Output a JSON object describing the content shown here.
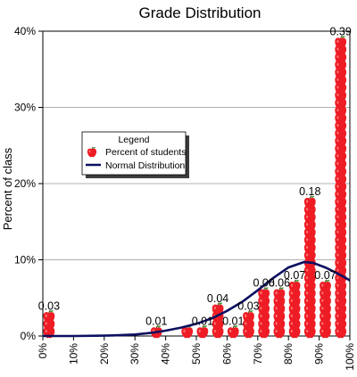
{
  "chart_data": {
    "type": "bar",
    "title": "Grade Distribution",
    "ylabel": "Percent of class",
    "xlabel": "",
    "xlim": [
      0,
      100
    ],
    "ylim": [
      0,
      0.4
    ],
    "x_ticks": [
      "0%",
      "10%",
      "20%",
      "30%",
      "40%",
      "50%",
      "60%",
      "70%",
      "80%",
      "90%",
      "100%"
    ],
    "x_tick_values": [
      0,
      10,
      20,
      30,
      40,
      50,
      60,
      70,
      80,
      90,
      100
    ],
    "y_ticks": [
      "0%",
      "10%",
      "20%",
      "30%",
      "40%"
    ],
    "y_tick_values": [
      0,
      0.1,
      0.2,
      0.3,
      0.4
    ],
    "legend": {
      "title": "Legend",
      "placement": "left-middle",
      "entries": [
        {
          "label": "Percent of students",
          "marker": "apple-icon"
        },
        {
          "label": "Normal Distribution",
          "marker": "line"
        }
      ]
    },
    "series": [
      {
        "name": "Percent of students",
        "marker": "apple-icon",
        "color": "#e8161b",
        "x": [
          2,
          37,
          47,
          52,
          57,
          62,
          67,
          72,
          77,
          82,
          87,
          92,
          97
        ],
        "values": [
          0.03,
          0.01,
          0.01,
          0.01,
          0.04,
          0.01,
          0.03,
          0.06,
          0.06,
          0.07,
          0.18,
          0.07,
          0.39
        ],
        "labels": [
          "0.03",
          "0.01",
          "0.01",
          "0.04",
          "0.01",
          "0.03",
          "0.06",
          "0.06",
          "0.07",
          "0.18",
          "0.07",
          "0.39"
        ],
        "label_points": [
          0,
          1,
          3,
          4,
          5,
          6,
          7,
          8,
          9,
          10,
          11,
          12
        ]
      },
      {
        "name": "Normal Distribution",
        "type": "line",
        "color": "#0d1060",
        "x": [
          0,
          10,
          20,
          25,
          30,
          35,
          40,
          45,
          50,
          55,
          60,
          65,
          70,
          75,
          80,
          85,
          88,
          92,
          97,
          100
        ],
        "values": [
          0.0,
          0.0,
          0.0005,
          0.001,
          0.002,
          0.004,
          0.007,
          0.011,
          0.016,
          0.023,
          0.033,
          0.045,
          0.06,
          0.076,
          0.09,
          0.097,
          0.096,
          0.09,
          0.08,
          0.073
        ]
      }
    ]
  }
}
